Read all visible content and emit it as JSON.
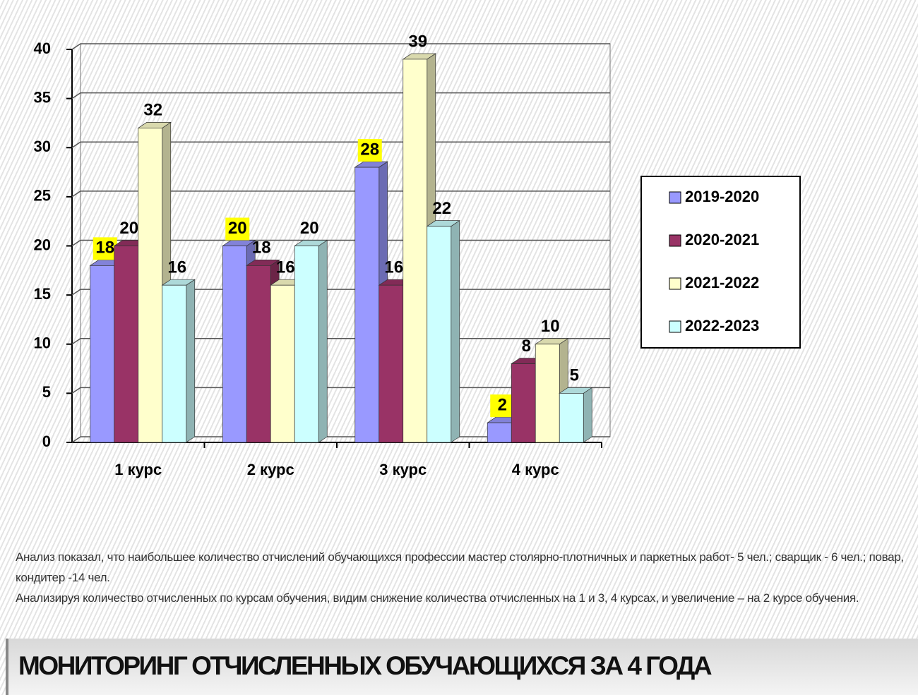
{
  "chart_data": {
    "type": "bar3d",
    "categories": [
      "1 курс",
      "2 курс",
      "3 курс",
      "4 курс"
    ],
    "series": [
      {
        "name": "2019-2020",
        "color": "#9999ff",
        "values": [
          18,
          20,
          28,
          2
        ],
        "label_highlight": "#ffff00"
      },
      {
        "name": "2020-2021",
        "color": "#993366",
        "values": [
          20,
          18,
          16,
          8
        ]
      },
      {
        "name": "2021-2022",
        "color": "#ffffcc",
        "values": [
          32,
          16,
          39,
          10
        ]
      },
      {
        "name": "2022-2023",
        "color": "#ccffff",
        "values": [
          16,
          20,
          22,
          5
        ]
      }
    ],
    "ylim": [
      0,
      40
    ],
    "yticks": [
      0,
      5,
      10,
      15,
      20,
      25,
      30,
      35,
      40
    ],
    "grid": true,
    "legend": "right"
  },
  "slide": {
    "paragraphs": [
      "Анализ показал, что наибольшее количество отчислений обучающихся профессии мастер столярно-плотничных и паркетных работ- 5 чел.; сварщик - 6 чел.; повар, кондитер -14 чел.",
      "Анализируя количество отчисленных по курсам обучения, видим снижение количества отчисленных на 1 и 3, 4 курсах, и увеличение – на 2 курсе обучения."
    ],
    "title": "МОНИТОРИНГ ОТЧИСЛЕННЫХ ОБУЧАЮЩИХСЯ ЗА 4 ГОДА"
  }
}
